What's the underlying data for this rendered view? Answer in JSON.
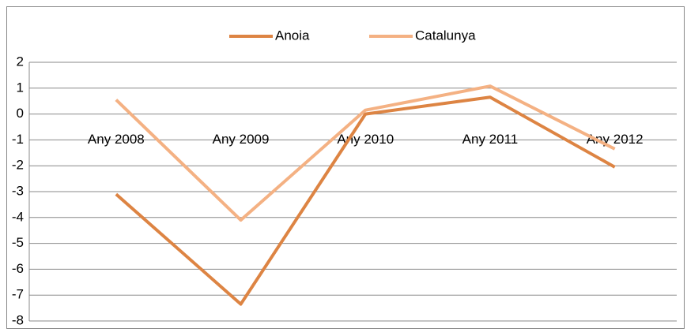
{
  "chart_data": {
    "type": "line",
    "categories": [
      "Any 2008",
      "Any 2009",
      "Any 2010",
      "Any 2011",
      "Any 2012"
    ],
    "series": [
      {
        "name": "Anoia",
        "color": "#dd8443",
        "values": [
          -3.1,
          -7.35,
          0,
          0.65,
          -2.05
        ]
      },
      {
        "name": "Catalunya",
        "color": "#f4b183",
        "values": [
          0.55,
          -4.1,
          0.15,
          1.08,
          -1.35
        ]
      }
    ],
    "ylim": [
      -8,
      2
    ],
    "yticks": [
      -8,
      -7,
      -6,
      -5,
      -4,
      -3,
      -2,
      -1,
      0,
      1,
      2
    ],
    "grid": true,
    "legend": "top"
  }
}
